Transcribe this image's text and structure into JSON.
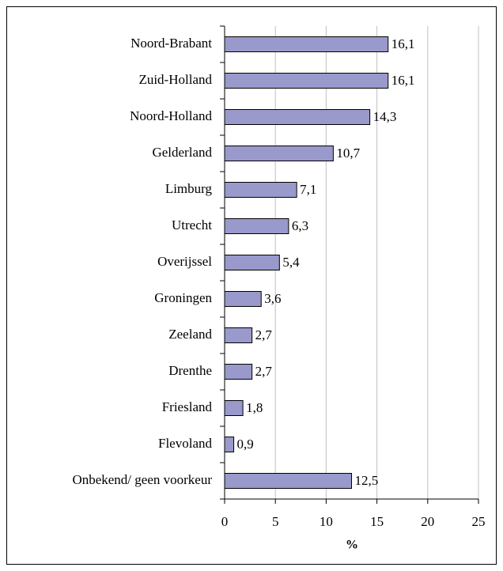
{
  "chart_data": {
    "type": "bar",
    "orientation": "horizontal",
    "categories": [
      "Noord-Brabant",
      "Zuid-Holland",
      "Noord-Holland",
      "Gelderland",
      "Limburg",
      "Utrecht",
      "Overijssel",
      "Groningen",
      "Zeeland",
      "Drenthe",
      "Friesland",
      "Flevoland",
      "Onbekend/ geen voorkeur"
    ],
    "values": [
      16.1,
      16.1,
      14.3,
      10.7,
      7.1,
      6.3,
      5.4,
      3.6,
      2.7,
      2.7,
      1.8,
      0.9,
      12.5
    ],
    "value_labels": [
      "16,1",
      "16,1",
      "14,3",
      "10,7",
      "7,1",
      "6,3",
      "5,4",
      "3,6",
      "2,7",
      "2,7",
      "1,8",
      "0,9",
      "12,5"
    ],
    "color": "#9999cc",
    "xlabel": "%",
    "xlim": [
      0,
      25
    ],
    "xticks": [
      0,
      5,
      10,
      15,
      20,
      25
    ],
    "grid": true
  }
}
